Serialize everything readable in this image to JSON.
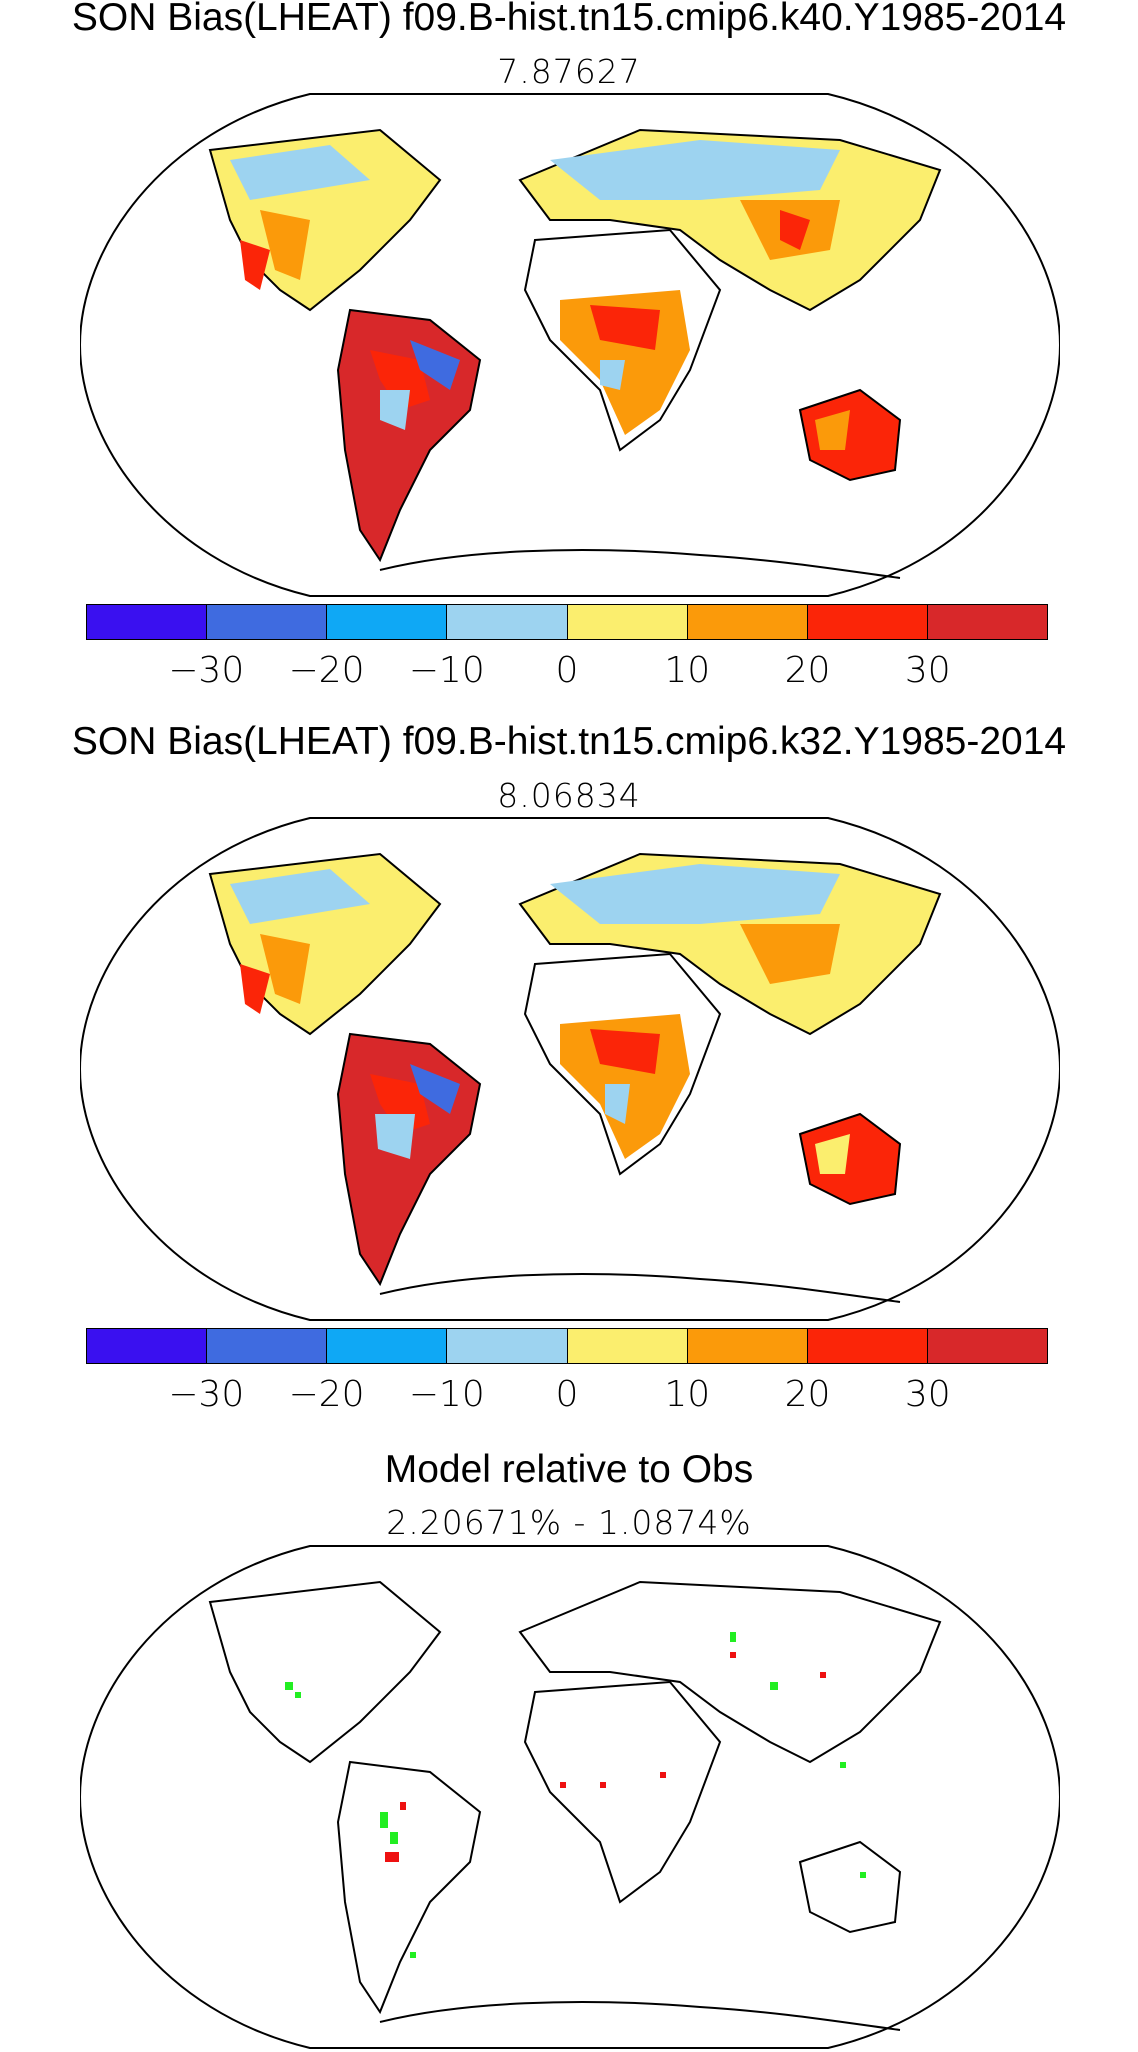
{
  "panels": [
    {
      "title": "SON Bias(LHEAT) f09.B-hist.tn15.cmip6.k40.Y1985-2014",
      "subtitle": "7.87627"
    },
    {
      "title": "SON Bias(LHEAT) f09.B-hist.tn15.cmip6.k32.Y1985-2014",
      "subtitle": "8.06834"
    },
    {
      "title": "Model relative to Obs",
      "subtitle": "2.20671% - 1.0874%"
    }
  ],
  "colorbar": {
    "colors": [
      "#3a10f0",
      "#3f6be0",
      "#0fa8f5",
      "#9dd3f0",
      "#fbee6e",
      "#fb9a0a",
      "#fb2508",
      "#d8282a"
    ],
    "tick_labels": [
      "−30",
      "−20",
      "−10",
      "0",
      "10",
      "20",
      "30"
    ]
  },
  "relative_colors": {
    "improve": "#22ee22",
    "worse": "#ee1111"
  }
}
